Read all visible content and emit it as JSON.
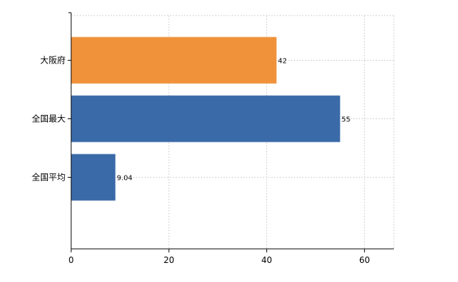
{
  "chart_data": {
    "type": "bar",
    "orientation": "horizontal",
    "categories": [
      "大阪府",
      "全国最大",
      "全国平均"
    ],
    "values": [
      42,
      55,
      9.04
    ],
    "data_labels": [
      "42",
      "55",
      "9.04"
    ],
    "bar_colors": [
      "#f0923a",
      "#3a6aa8",
      "#3a6aa8"
    ],
    "xlim": [
      0,
      66
    ],
    "xticks": [
      0,
      20,
      40,
      60
    ],
    "grid": true,
    "title": "",
    "xlabel": "",
    "ylabel": ""
  }
}
